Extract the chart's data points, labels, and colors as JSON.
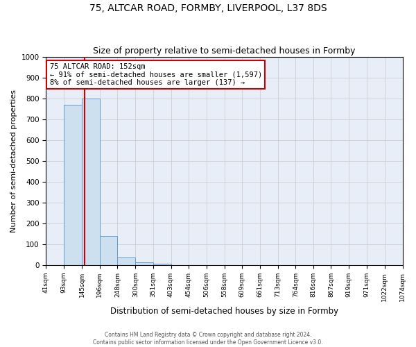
{
  "title": "75, ALTCAR ROAD, FORMBY, LIVERPOOL, L37 8DS",
  "subtitle": "Size of property relative to semi-detached houses in Formby",
  "xlabel": "Distribution of semi-detached houses by size in Formby",
  "ylabel": "Number of semi-detached properties",
  "bins": [
    41,
    93,
    145,
    196,
    248,
    300,
    351,
    403,
    454,
    506,
    558,
    609,
    661,
    713,
    764,
    816,
    867,
    919,
    971,
    1022,
    1074
  ],
  "counts": [
    0,
    770,
    800,
    140,
    35,
    13,
    8,
    0,
    0,
    0,
    0,
    0,
    0,
    0,
    0,
    0,
    0,
    0,
    0,
    0
  ],
  "bar_color": "#cce0f0",
  "bar_edge_color": "#6699cc",
  "property_size": 152,
  "property_line_color": "#cc0000",
  "annotation_line1": "75 ALTCAR ROAD: 152sqm",
  "annotation_line2": "← 91% of semi-detached houses are smaller (1,597)",
  "annotation_line3": "8% of semi-detached houses are larger (137) →",
  "annotation_box_color": "#ffffff",
  "annotation_box_edge_color": "#cc0000",
  "ylim": [
    0,
    1000
  ],
  "yticks": [
    0,
    100,
    200,
    300,
    400,
    500,
    600,
    700,
    800,
    900,
    1000
  ],
  "footer_line1": "Contains HM Land Registry data © Crown copyright and database right 2024.",
  "footer_line2": "Contains public sector information licensed under the Open Government Licence v3.0.",
  "background_color": "#e8eef8",
  "grid_color": "#c8c8c8",
  "title_fontsize": 10,
  "subtitle_fontsize": 9,
  "annotation_fontsize": 7.5,
  "tick_fontsize": 6.5,
  "ylabel_fontsize": 8,
  "xlabel_fontsize": 8.5,
  "footer_fontsize": 5.5
}
